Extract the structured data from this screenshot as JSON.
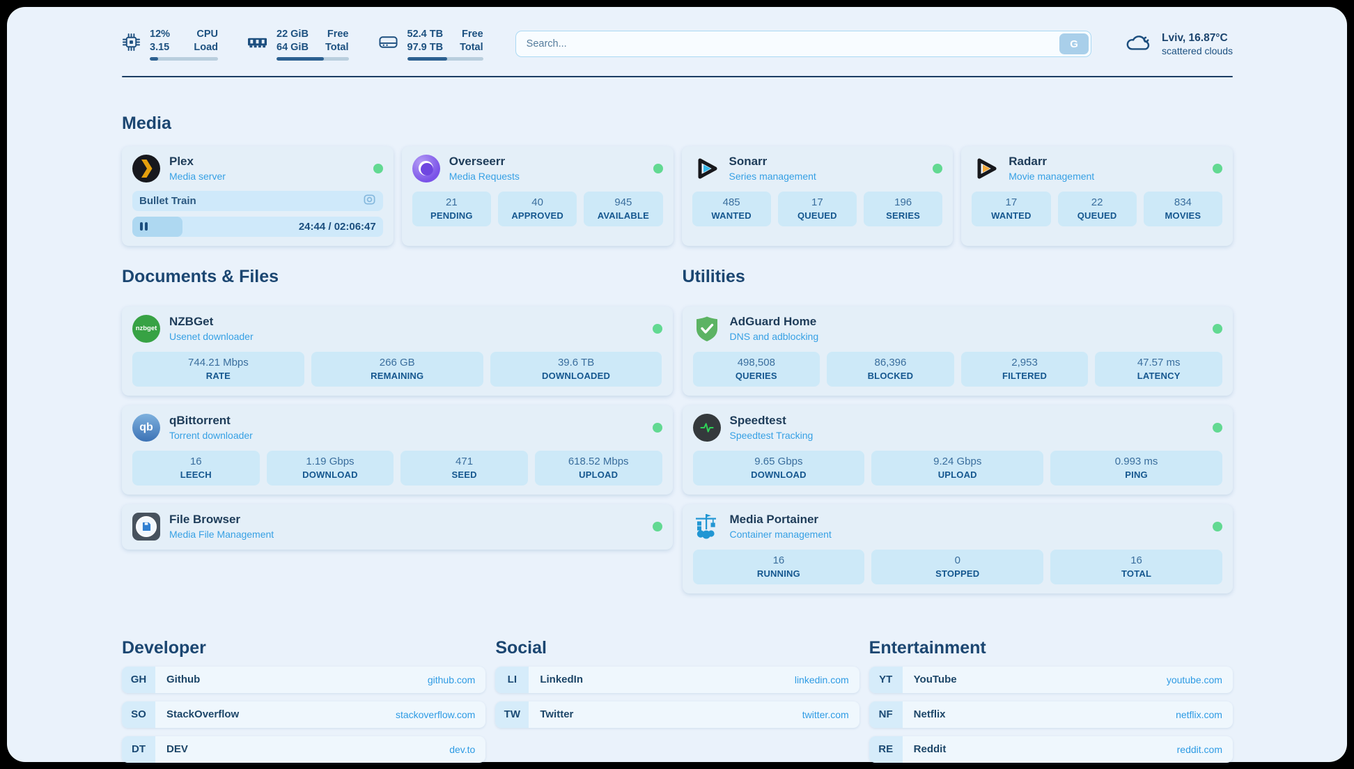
{
  "colors": {
    "page_background": "#eaf2fb",
    "status_online": "#62d992",
    "accent_blue": "#36a0e4",
    "link_blue": "#2e9be4"
  },
  "header": {
    "system_stats": [
      {
        "icon": "cpu-icon",
        "values": [
          "12%",
          "3.15"
        ],
        "labels": [
          "CPU",
          "Load"
        ],
        "progress": 12
      },
      {
        "icon": "memory-icon",
        "values": [
          "22 GiB",
          "64 GiB"
        ],
        "labels": [
          "Free",
          "Total"
        ],
        "progress": 66
      },
      {
        "icon": "disk-icon",
        "values": [
          "52.4 TB",
          "97.9 TB"
        ],
        "labels": [
          "Free",
          "Total"
        ],
        "progress": 53
      }
    ],
    "search": {
      "placeholder": "Search...",
      "button_label": "G"
    },
    "weather": {
      "location": "Lviv, 16.87°C",
      "condition": "scattered clouds"
    }
  },
  "sections": {
    "media": {
      "title": "Media",
      "apps": [
        {
          "name": "Plex",
          "description": "Media server",
          "status": "online",
          "now_playing": {
            "title": "Bullet Train",
            "time": "24:44 / 02:06:47",
            "progress": 20
          }
        },
        {
          "name": "Overseerr",
          "description": "Media Requests",
          "status": "online",
          "stats": [
            {
              "value": "21",
              "label": "PENDING"
            },
            {
              "value": "40",
              "label": "APPROVED"
            },
            {
              "value": "945",
              "label": "AVAILABLE"
            }
          ]
        },
        {
          "name": "Sonarr",
          "description": "Series management",
          "status": "online",
          "stats": [
            {
              "value": "485",
              "label": "WANTED"
            },
            {
              "value": "17",
              "label": "QUEUED"
            },
            {
              "value": "196",
              "label": "SERIES"
            }
          ]
        },
        {
          "name": "Radarr",
          "description": "Movie management",
          "status": "online",
          "stats": [
            {
              "value": "17",
              "label": "WANTED"
            },
            {
              "value": "22",
              "label": "QUEUED"
            },
            {
              "value": "834",
              "label": "MOVIES"
            }
          ]
        }
      ]
    },
    "documents": {
      "title": "Documents & Files",
      "apps": [
        {
          "name": "NZBGet",
          "description": "Usenet downloader",
          "status": "online",
          "stats": [
            {
              "value": "744.21 Mbps",
              "label": "RATE"
            },
            {
              "value": "266 GB",
              "label": "REMAINING"
            },
            {
              "value": "39.6 TB",
              "label": "DOWNLOADED"
            }
          ]
        },
        {
          "name": "qBittorrent",
          "description": "Torrent downloader",
          "status": "online",
          "stats": [
            {
              "value": "16",
              "label": "LEECH"
            },
            {
              "value": "1.19 Gbps",
              "label": "DOWNLOAD"
            },
            {
              "value": "471",
              "label": "SEED"
            },
            {
              "value": "618.52 Mbps",
              "label": "UPLOAD"
            }
          ]
        },
        {
          "name": "File Browser",
          "description": "Media File Management",
          "status": "online"
        }
      ]
    },
    "utilities": {
      "title": "Utilities",
      "apps": [
        {
          "name": "AdGuard Home",
          "description": "DNS and adblocking",
          "status": "online",
          "stats": [
            {
              "value": "498,508",
              "label": "QUERIES"
            },
            {
              "value": "86,396",
              "label": "BLOCKED"
            },
            {
              "value": "2,953",
              "label": "FILTERED"
            },
            {
              "value": "47.57 ms",
              "label": "LATENCY"
            }
          ]
        },
        {
          "name": "Speedtest",
          "description": "Speedtest Tracking",
          "status": "online",
          "stats": [
            {
              "value": "9.65 Gbps",
              "label": "DOWNLOAD"
            },
            {
              "value": "9.24 Gbps",
              "label": "UPLOAD"
            },
            {
              "value": "0.993 ms",
              "label": "PING"
            }
          ]
        },
        {
          "name": "Media Portainer",
          "description": "Container management",
          "status": "online",
          "stats": [
            {
              "value": "16",
              "label": "RUNNING"
            },
            {
              "value": "0",
              "label": "STOPPED"
            },
            {
              "value": "16",
              "label": "TOTAL"
            }
          ]
        }
      ]
    }
  },
  "bookmarks": {
    "groups": [
      {
        "title": "Developer",
        "items": [
          {
            "abbr": "GH",
            "name": "Github",
            "link": "github.com"
          },
          {
            "abbr": "SO",
            "name": "StackOverflow",
            "link": "stackoverflow.com"
          },
          {
            "abbr": "DT",
            "name": "DEV",
            "link": "dev.to"
          }
        ]
      },
      {
        "title": "Social",
        "items": [
          {
            "abbr": "LI",
            "name": "LinkedIn",
            "link": "linkedin.com"
          },
          {
            "abbr": "TW",
            "name": "Twitter",
            "link": "twitter.com"
          }
        ]
      },
      {
        "title": "Entertainment",
        "items": [
          {
            "abbr": "YT",
            "name": "YouTube",
            "link": "youtube.com"
          },
          {
            "abbr": "NF",
            "name": "Netflix",
            "link": "netflix.com"
          },
          {
            "abbr": "RE",
            "name": "Reddit",
            "link": "reddit.com"
          }
        ]
      }
    ]
  }
}
